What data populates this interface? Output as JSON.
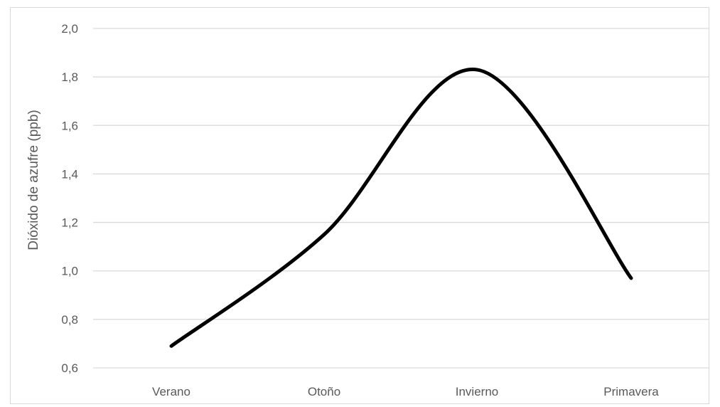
{
  "chart_data": {
    "type": "line",
    "categories": [
      "Verano",
      "Otoño",
      "Invierno",
      "Primavera"
    ],
    "series": [
      {
        "values": [
          0.69,
          1.15,
          1.83,
          0.97
        ]
      }
    ],
    "ylabel": "Dióxido de azufre (ppb)",
    "xlabel": "",
    "ylim": [
      0.6,
      2.0
    ],
    "yticks": [
      "0,6",
      "0,8",
      "1,0",
      "1,2",
      "1,4",
      "1,6",
      "1,8",
      "2,0"
    ],
    "grid": true,
    "smooth": true,
    "line_color": "#000000",
    "grid_color": "#d9d9d9"
  }
}
